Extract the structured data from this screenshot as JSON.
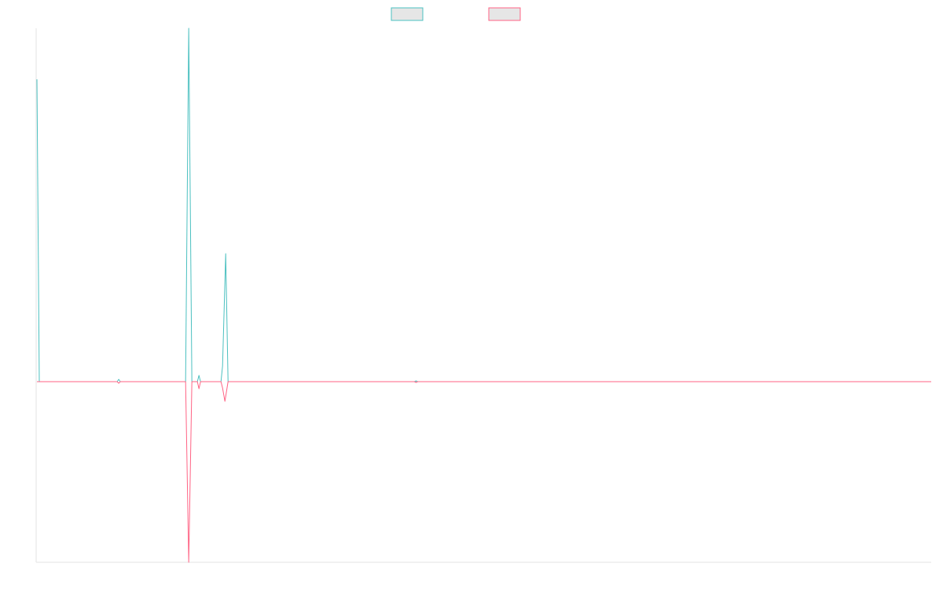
{
  "chart_data": {
    "type": "line",
    "title": "",
    "xlabel": "",
    "ylabel": "",
    "x_range": [
      0,
      1137
    ],
    "y_range": [
      -230,
      450
    ],
    "grid": false,
    "legend_position": "top-center",
    "series": [
      {
        "color": "#4bc0c0",
        "points": [
          [
            0,
            385
          ],
          [
            3,
            0
          ],
          [
            102,
            0
          ],
          [
            104,
            3
          ],
          [
            106,
            0
          ],
          [
            189,
            0
          ],
          [
            193,
            450
          ],
          [
            197,
            0
          ],
          [
            204,
            0
          ],
          [
            206,
            8
          ],
          [
            208,
            0
          ],
          [
            234,
            0
          ],
          [
            236,
            20
          ],
          [
            240,
            163
          ],
          [
            243,
            0
          ],
          [
            480,
            0
          ],
          [
            482,
            1
          ],
          [
            484,
            0
          ],
          [
            1137,
            0
          ]
        ]
      },
      {
        "color": "#ff6384",
        "points": [
          [
            0,
            0
          ],
          [
            102,
            0
          ],
          [
            104,
            -2
          ],
          [
            106,
            0
          ],
          [
            189,
            0
          ],
          [
            193,
            -230
          ],
          [
            197,
            0
          ],
          [
            204,
            0
          ],
          [
            206,
            -9
          ],
          [
            208,
            0
          ],
          [
            234,
            0
          ],
          [
            236,
            -8
          ],
          [
            239,
            -25
          ],
          [
            243,
            0
          ],
          [
            480,
            0
          ],
          [
            482,
            -1
          ],
          [
            484,
            0
          ],
          [
            1137,
            0
          ]
        ]
      }
    ]
  }
}
